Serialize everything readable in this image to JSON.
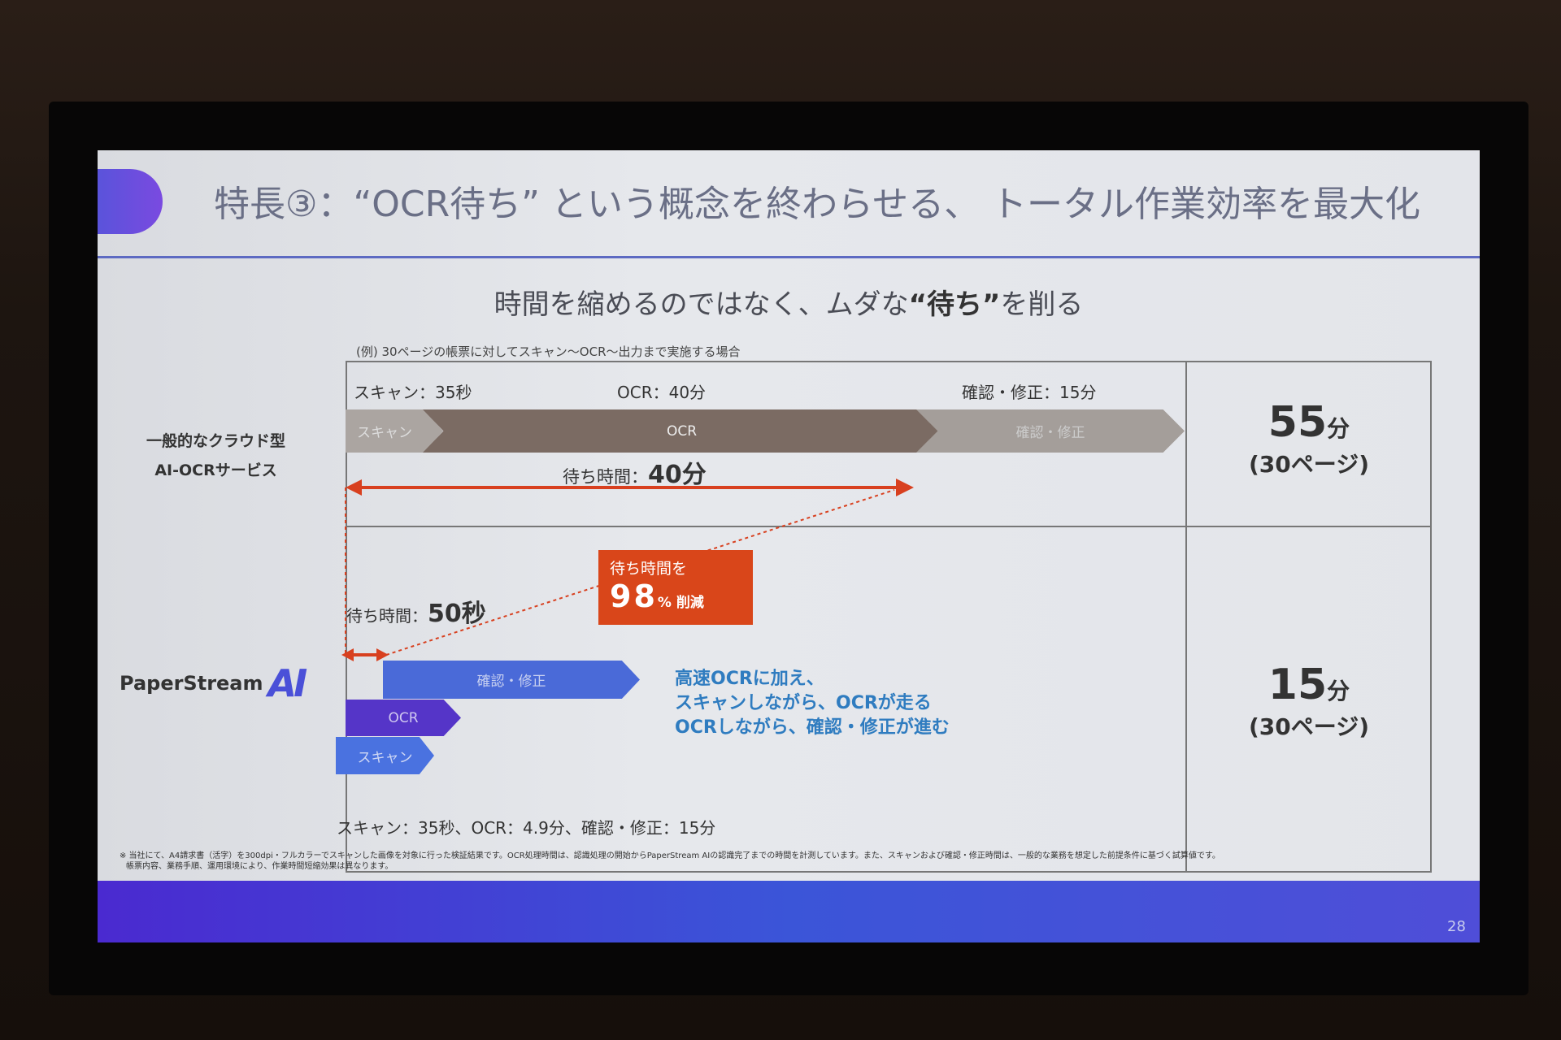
{
  "slide": {
    "title": "特長③：“OCR待ち” という概念を終わらせる、 トータル作業効率を最大化",
    "subtitle_pre": "時間を縮めるのではなく、ムダな",
    "subtitle_bold": "“待ち”",
    "subtitle_post": "を削る",
    "example_note": "(例) 30ページの帳票に対してスキャン～OCR～出力まで実施する場合",
    "cloud": {
      "label_line1": "一般的なクラウド型",
      "label_line2": "AI-OCRサービス",
      "scan_time": "スキャン：35秒",
      "ocr_time": "OCR：40分",
      "confirm_time": "確認・修正：15分",
      "step_scan": "スキャン",
      "step_ocr": "OCR",
      "step_confirm": "確認・修正",
      "wait_label": "待ち時間：",
      "wait_value": "40分",
      "total_value": "55",
      "total_unit": "分",
      "pages": "(30ページ)"
    },
    "reduction": {
      "line1": "待ち時間を",
      "value": "98",
      "unit": "% 削減"
    },
    "paperstream": {
      "logo_text": "PaperStream",
      "logo_ai": "AI",
      "wait_label": "待ち時間：",
      "wait_value": "50秒",
      "step_confirm": "確認・修正",
      "step_ocr": "OCR",
      "step_scan": "スキャン",
      "desc": [
        "高速OCRに加え、",
        "スキャンしながら、OCRが走る",
        "OCRしながら、確認・修正が進む"
      ],
      "times": "スキャン：35秒、OCR：4.9分、確認・修正：15分",
      "total_value": "15",
      "total_unit": "分",
      "pages": "(30ページ)"
    },
    "footnote": [
      "※ 当社にて、A4請求書（活字）を300dpi・フルカラーでスキャンした画像を対象に行った検証結果です。OCR処理時間は、認識処理の開始からPaperStream AIの認識完了までの時間を計測しています。また、スキャンおよび確認・修正時間は、一般的な業務を想定した前提条件に基づく試算値です。",
      "帳票内容、業務手順、運用環境により、作業時間短縮効果は異なります。"
    ],
    "page_number": "28",
    "colors": {
      "accent_red": "#d9461a",
      "accent_blue": "#4a6ad8",
      "ocr_purple": "#5535c8",
      "cloud_ocr": "#7b6b63",
      "desc_blue": "#2f7cc0"
    }
  }
}
